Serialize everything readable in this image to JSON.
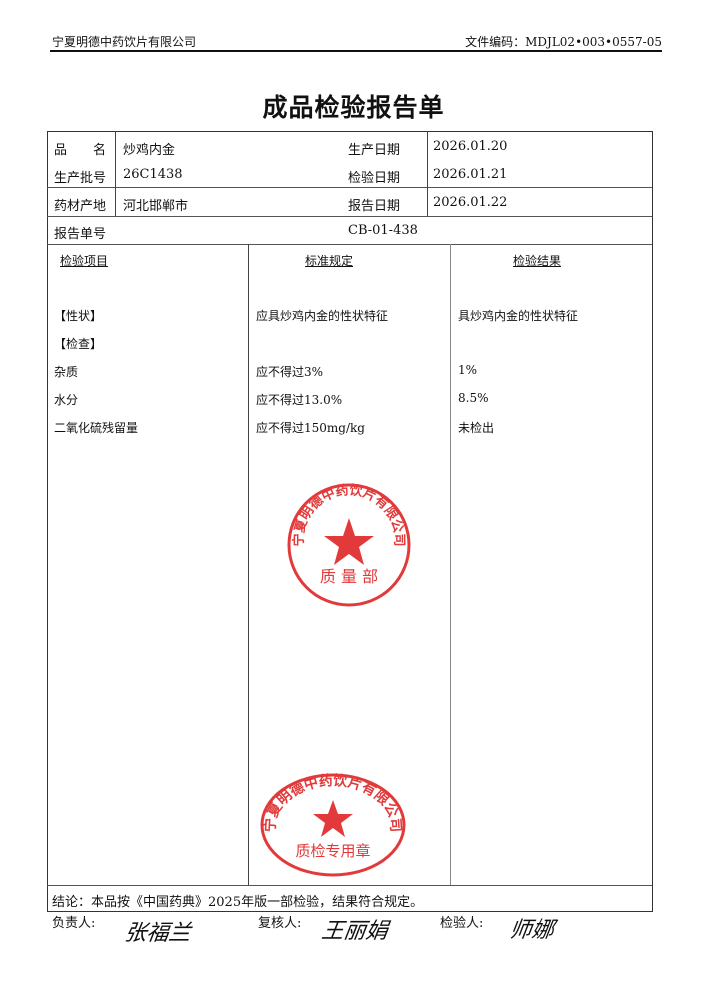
{
  "header": {
    "company": "宁夏明德中药饮片有限公司",
    "doc_no": "文件编码：MDJL02•003•0557-05"
  },
  "title": "成品检验报告单",
  "info": {
    "name_label": "品　　名",
    "name": "炒鸡内金",
    "batch_label": "生产批号",
    "batch": "26C1438",
    "origin_label": "药材产地",
    "origin": "河北邯郸市",
    "prod_date_label": "生产日期",
    "prod_date": "2026.01.20",
    "test_date_label": "检验日期",
    "test_date": "2026.01.21",
    "report_date_label": "报告日期",
    "report_date": "2026.01.22",
    "report_no_label": "报告单号",
    "report_no": "CB-01-438"
  },
  "table": {
    "headers": [
      "检验项目",
      "标准规定",
      "检验结果"
    ],
    "rows": [
      [
        "【性状】",
        "应具炒鸡内金的性状特征",
        "具炒鸡内金的性状特征"
      ],
      [
        "【检查】",
        "",
        ""
      ],
      [
        "杂质",
        "应不得过3%",
        "1%"
      ],
      [
        "水分",
        "应不得过13.0%",
        "8.5%"
      ],
      [
        "二氧化硫残留量",
        "应不得过150mg/kg",
        "未检出"
      ]
    ]
  },
  "conclusion": "结论：本品按《中国药典》2025年版一部检验，结果符合规定。",
  "signatures": {
    "responsible_label": "负责人:",
    "responsible": "张福兰",
    "reviewer_label": "复核人:",
    "reviewer": "王丽娟",
    "inspector_label": "检验人:",
    "inspector": "师娜"
  },
  "stamps": {
    "top": {
      "ring": "宁夏明德中药饮片有限公司",
      "center": "质 量 部"
    },
    "bottom": {
      "ring": "宁夏明德中药饮片有限公司",
      "center": "质检专用章"
    },
    "color": "#e23a3a"
  }
}
